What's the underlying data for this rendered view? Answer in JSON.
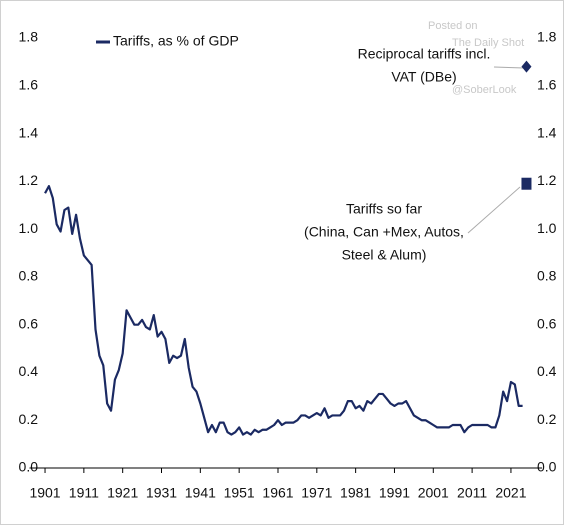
{
  "chart_data": {
    "type": "line",
    "x": [
      1901,
      1902,
      1903,
      1904,
      1905,
      1906,
      1907,
      1908,
      1909,
      1910,
      1911,
      1912,
      1913,
      1914,
      1915,
      1916,
      1917,
      1918,
      1919,
      1920,
      1921,
      1922,
      1923,
      1924,
      1925,
      1926,
      1927,
      1928,
      1929,
      1930,
      1931,
      1932,
      1933,
      1934,
      1935,
      1936,
      1937,
      1938,
      1939,
      1940,
      1941,
      1942,
      1943,
      1944,
      1945,
      1946,
      1947,
      1948,
      1949,
      1950,
      1951,
      1952,
      1953,
      1954,
      1955,
      1956,
      1957,
      1958,
      1959,
      1960,
      1961,
      1962,
      1963,
      1964,
      1965,
      1966,
      1967,
      1968,
      1969,
      1970,
      1971,
      1972,
      1973,
      1974,
      1975,
      1976,
      1977,
      1978,
      1979,
      1980,
      1981,
      1982,
      1983,
      1984,
      1985,
      1986,
      1987,
      1988,
      1989,
      1990,
      1991,
      1992,
      1993,
      1994,
      1995,
      1996,
      1997,
      1998,
      1999,
      2000,
      2001,
      2002,
      2003,
      2004,
      2005,
      2006,
      2007,
      2008,
      2009,
      2010,
      2011,
      2012,
      2013,
      2014,
      2015,
      2016,
      2017,
      2018,
      2019,
      2020,
      2021,
      2022,
      2023,
      2024
    ],
    "series": [
      {
        "name": "Tariffs, as % of GDP",
        "color": "#1b2a63",
        "values": [
          1.15,
          1.18,
          1.13,
          1.02,
          0.99,
          1.08,
          1.09,
          0.98,
          1.06,
          0.96,
          0.89,
          0.87,
          0.85,
          0.58,
          0.47,
          0.43,
          0.27,
          0.24,
          0.37,
          0.41,
          0.48,
          0.66,
          0.63,
          0.6,
          0.6,
          0.62,
          0.59,
          0.58,
          0.64,
          0.55,
          0.57,
          0.54,
          0.44,
          0.47,
          0.46,
          0.47,
          0.54,
          0.42,
          0.34,
          0.32,
          0.27,
          0.21,
          0.15,
          0.18,
          0.15,
          0.19,
          0.19,
          0.15,
          0.14,
          0.15,
          0.17,
          0.14,
          0.15,
          0.14,
          0.16,
          0.15,
          0.16,
          0.16,
          0.17,
          0.18,
          0.2,
          0.18,
          0.19,
          0.19,
          0.19,
          0.2,
          0.22,
          0.22,
          0.21,
          0.22,
          0.23,
          0.22,
          0.25,
          0.21,
          0.22,
          0.22,
          0.22,
          0.24,
          0.28,
          0.28,
          0.25,
          0.26,
          0.24,
          0.28,
          0.27,
          0.29,
          0.31,
          0.31,
          0.29,
          0.27,
          0.26,
          0.27,
          0.27,
          0.28,
          0.25,
          0.22,
          0.21,
          0.2,
          0.2,
          0.19,
          0.18,
          0.17,
          0.17,
          0.17,
          0.17,
          0.18,
          0.18,
          0.18,
          0.15,
          0.17,
          0.18,
          0.18,
          0.18,
          0.18,
          0.18,
          0.17,
          0.17,
          0.22,
          0.32,
          0.28,
          0.36,
          0.35,
          0.26,
          0.26
        ]
      }
    ],
    "points": [
      {
        "label": [
          "Reciprocal tariffs incl.",
          "VAT (DBe)"
        ],
        "x": 2025,
        "value": 1.68,
        "marker": "diamond"
      },
      {
        "label": [
          "Tariffs so far",
          "(China, Can +Mex, Autos,",
          "Steel & Alum)"
        ],
        "x": 2025,
        "value": 1.19,
        "marker": "square"
      }
    ],
    "xlim": [
      1897,
      2029
    ],
    "xticks": [
      1901,
      1911,
      1921,
      1931,
      1941,
      1951,
      1961,
      1971,
      1981,
      1991,
      2001,
      2011,
      2021
    ],
    "ylim": [
      0,
      1.8
    ],
    "yticks": [
      {
        "value": 0,
        "label": "0.0"
      },
      0.2,
      0.4,
      0.6,
      0.8,
      {
        "value": 1,
        "label": "1.0"
      },
      1.2,
      1.4,
      1.6,
      1.8
    ],
    "legend": "top-left",
    "watermark": [
      "Posted on",
      "The Daily Shot",
      "@SoberLook"
    ]
  }
}
